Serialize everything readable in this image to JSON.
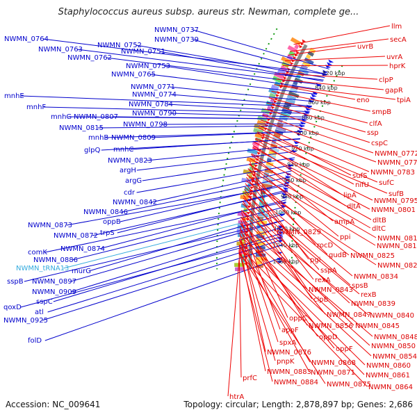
{
  "title": "Staphylococcus aureus subsp. aureus str. Newman, complete ge...",
  "footer": {
    "accession": "Accession: NC_009641",
    "summary": "Topology: circular; Length: 2,878,897 bp; Genes: 2,686"
  },
  "colors": {
    "forward": "#0000dd",
    "reverse": "#dd0000",
    "trna": "#33aadd",
    "backbone": "#888888",
    "gc_skew": "#118811"
  },
  "ticks": [
    "820 kbp",
    "840 kbp",
    "860 kbp",
    "880 kbp",
    "900 kbp",
    "920 kbp",
    "940 kbp",
    "960 kbp",
    "980 kbp",
    "1000 kbp",
    "1020 kbp",
    "1040 kbp",
    "1060 kbp"
  ],
  "left_labels": [
    {
      "text": "NWMN_0737",
      "color": "#0000cc"
    },
    {
      "text": "NWMN_0739",
      "color": "#0000cc"
    },
    {
      "text": "NWMN_0764",
      "color": "#0000cc"
    },
    {
      "text": "NWMN_0752",
      "color": "#0000cc"
    },
    {
      "text": "NWMN_0751",
      "color": "#0000cc"
    },
    {
      "text": "NWMN_0763",
      "color": "#0000cc"
    },
    {
      "text": "NWMN_0762",
      "color": "#0000cc"
    },
    {
      "text": "NWMN_0753",
      "color": "#0000cc"
    },
    {
      "text": "NWMN_0765",
      "color": "#0000cc"
    },
    {
      "text": "NWMN_0771",
      "color": "#0000cc"
    },
    {
      "text": "NWMN_0774",
      "color": "#0000cc"
    },
    {
      "text": "mnhE",
      "color": "#0000cc"
    },
    {
      "text": "NWMN_0784",
      "color": "#0000cc"
    },
    {
      "text": "mnhF",
      "color": "#0000cc"
    },
    {
      "text": "NWMN_0790",
      "color": "#0000cc"
    },
    {
      "text": "mnhG",
      "color": "#0000cc"
    },
    {
      "text": "NWMN_0807",
      "color": "#0000cc"
    },
    {
      "text": "NWMN_0798",
      "color": "#0000cc"
    },
    {
      "text": "NWMN_0815",
      "color": "#0000cc"
    },
    {
      "text": "mnhB",
      "color": "#0000cc"
    },
    {
      "text": "NWMN_0809",
      "color": "#0000cc"
    },
    {
      "text": "glpQ",
      "color": "#0000cc"
    },
    {
      "text": "mnhC",
      "color": "#0000cc"
    },
    {
      "text": "NWMN_0823",
      "color": "#0000cc"
    },
    {
      "text": "argH",
      "color": "#0000cc"
    },
    {
      "text": "argG",
      "color": "#0000cc"
    },
    {
      "text": "cdr",
      "color": "#0000cc"
    },
    {
      "text": "NWMN_0842",
      "color": "#0000cc"
    },
    {
      "text": "NWMN_0846",
      "color": "#0000cc"
    },
    {
      "text": "oppB",
      "color": "#0000cc"
    },
    {
      "text": "NWMN_0873",
      "color": "#0000cc"
    },
    {
      "text": "trpS",
      "color": "#0000cc"
    },
    {
      "text": "NWMN_0872",
      "color": "#0000cc"
    },
    {
      "text": "NWMN_0874",
      "color": "#0000cc"
    },
    {
      "text": "comK",
      "color": "#0000cc"
    },
    {
      "text": "NWMN_0886",
      "color": "#0000cc"
    },
    {
      "text": "NWMN_tRNA13",
      "color": "#33aadd"
    },
    {
      "text": "murG",
      "color": "#0000cc"
    },
    {
      "text": "sspB",
      "color": "#0000cc"
    },
    {
      "text": "NWMN_0897",
      "color": "#0000cc"
    },
    {
      "text": "NWMN_0909",
      "color": "#0000cc"
    },
    {
      "text": "sspC",
      "color": "#0000cc"
    },
    {
      "text": "qoxD",
      "color": "#0000cc"
    },
    {
      "text": "atl",
      "color": "#0000cc"
    },
    {
      "text": "NWMN_0925",
      "color": "#0000cc"
    },
    {
      "text": "folD",
      "color": "#0000cc"
    }
  ],
  "right_labels": [
    {
      "text": "llm"
    },
    {
      "text": "secA"
    },
    {
      "text": "uvrB"
    },
    {
      "text": "uvrA"
    },
    {
      "text": "hprK"
    },
    {
      "text": "clpP"
    },
    {
      "text": "gapR"
    },
    {
      "text": "eno"
    },
    {
      "text": "tpiA"
    },
    {
      "text": "smpB"
    },
    {
      "text": "clfA"
    },
    {
      "text": "ssp"
    },
    {
      "text": "cspC"
    },
    {
      "text": "NWMN_0772"
    },
    {
      "text": "NWMN_0778"
    },
    {
      "text": "sufS"
    },
    {
      "text": "NWMN_0783"
    },
    {
      "text": "sufC"
    },
    {
      "text": "nifU"
    },
    {
      "text": "sufB"
    },
    {
      "text": "lipA"
    },
    {
      "text": "NWMN_0795"
    },
    {
      "text": "dltA"
    },
    {
      "text": "NWMN_0801"
    },
    {
      "text": "dltB"
    },
    {
      "text": "ampA"
    },
    {
      "text": "dltC"
    },
    {
      "text": "NWMN_0829"
    },
    {
      "text": "ppi"
    },
    {
      "text": "NWMN_0813"
    },
    {
      "text": "rocD"
    },
    {
      "text": "NWMN_0814"
    },
    {
      "text": "gudB"
    },
    {
      "text": "NWMN_0825"
    },
    {
      "text": "pgi"
    },
    {
      "text": "NWMN_0826"
    },
    {
      "text": "sspA"
    },
    {
      "text": "NWMN_0834"
    },
    {
      "text": "rexA"
    },
    {
      "text": "spsB"
    },
    {
      "text": "NWMN_0843"
    },
    {
      "text": "rexB"
    },
    {
      "text": "clpB"
    },
    {
      "text": "NWMN_0839"
    },
    {
      "text": "NWMN_0847"
    },
    {
      "text": "NWMN_0840"
    },
    {
      "text": "oppC"
    },
    {
      "text": "NWMN_0856"
    },
    {
      "text": "NWMN_0845"
    },
    {
      "text": "appF"
    },
    {
      "text": "oppD"
    },
    {
      "text": "NWMN_0848"
    },
    {
      "text": "spxA"
    },
    {
      "text": "oppF"
    },
    {
      "text": "NWMN_0850"
    },
    {
      "text": "NWMN_0876"
    },
    {
      "text": "NWMN_0854"
    },
    {
      "text": "pnpK"
    },
    {
      "text": "NWMN_0868"
    },
    {
      "text": "NWMN_0860"
    },
    {
      "text": "NWMN_0871"
    },
    {
      "text": "NWMN_0883"
    },
    {
      "text": "NWMN_0861"
    },
    {
      "text": "prfC"
    },
    {
      "text": "NWMN_0884"
    },
    {
      "text": "NWMN_0875"
    },
    {
      "text": "NWMN_0864"
    },
    {
      "text": "htrA"
    }
  ]
}
